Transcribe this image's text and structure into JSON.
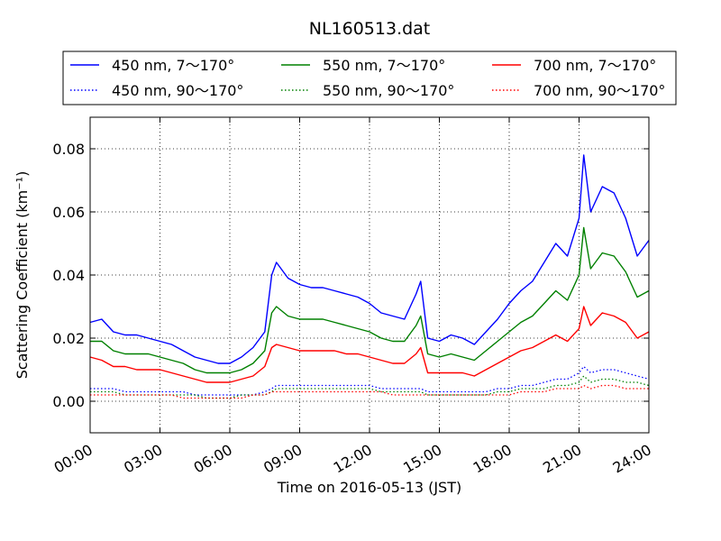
{
  "chart_data": {
    "type": "line",
    "title": "NL160513.dat",
    "xlabel": "Time on 2016-05-13 (JST)",
    "ylabel": "Scattering Coefficient (km⁻¹)",
    "x_ticks": [
      "00:00",
      "03:00",
      "06:00",
      "09:00",
      "12:00",
      "15:00",
      "18:00",
      "21:00",
      "24:00"
    ],
    "y_ticks": [
      "0.00",
      "0.02",
      "0.04",
      "0.06",
      "0.08"
    ],
    "xlim_hours": [
      0,
      24
    ],
    "ylim": [
      -0.01,
      0.09
    ],
    "grid": true,
    "legend_position": "top",
    "x_hours": [
      0,
      0.5,
      1,
      1.5,
      2,
      2.5,
      3,
      3.5,
      4,
      4.5,
      5,
      5.5,
      6,
      6.5,
      7,
      7.5,
      7.8,
      8,
      8.5,
      9,
      9.5,
      10,
      10.5,
      11,
      11.5,
      12,
      12.5,
      13,
      13.5,
      14,
      14.2,
      14.5,
      15,
      15.5,
      16,
      16.5,
      17,
      17.5,
      18,
      18.5,
      19,
      19.5,
      20,
      20.5,
      21,
      21.2,
      21.5,
      22,
      22.5,
      23,
      23.5,
      24
    ],
    "series": [
      {
        "name": "450 nm, 7～170°",
        "color": "#0000ff",
        "dash": "solid",
        "values": [
          0.025,
          0.026,
          0.022,
          0.021,
          0.021,
          0.02,
          0.019,
          0.018,
          0.016,
          0.014,
          0.013,
          0.012,
          0.012,
          0.014,
          0.017,
          0.022,
          0.04,
          0.044,
          0.039,
          0.037,
          0.036,
          0.036,
          0.035,
          0.034,
          0.033,
          0.031,
          0.028,
          0.027,
          0.026,
          0.034,
          0.038,
          0.02,
          0.019,
          0.021,
          0.02,
          0.018,
          0.022,
          0.026,
          0.031,
          0.035,
          0.038,
          0.044,
          0.05,
          0.046,
          0.058,
          0.078,
          0.06,
          0.068,
          0.066,
          0.058,
          0.046,
          0.051
        ]
      },
      {
        "name": "450 nm, 90～170°",
        "color": "#0000ff",
        "dash": "dotted",
        "values": [
          0.004,
          0.004,
          0.004,
          0.003,
          0.003,
          0.003,
          0.003,
          0.003,
          0.003,
          0.002,
          0.002,
          0.002,
          0.002,
          0.002,
          0.002,
          0.003,
          0.004,
          0.005,
          0.005,
          0.005,
          0.005,
          0.005,
          0.005,
          0.005,
          0.005,
          0.005,
          0.004,
          0.004,
          0.004,
          0.004,
          0.004,
          0.003,
          0.003,
          0.003,
          0.003,
          0.003,
          0.003,
          0.004,
          0.004,
          0.005,
          0.005,
          0.006,
          0.007,
          0.007,
          0.009,
          0.011,
          0.009,
          0.01,
          0.01,
          0.009,
          0.008,
          0.007
        ]
      },
      {
        "name": "550 nm, 7～170°",
        "color": "#008000",
        "dash": "solid",
        "values": [
          0.019,
          0.019,
          0.016,
          0.015,
          0.015,
          0.015,
          0.014,
          0.013,
          0.012,
          0.01,
          0.009,
          0.009,
          0.009,
          0.01,
          0.012,
          0.016,
          0.028,
          0.03,
          0.027,
          0.026,
          0.026,
          0.026,
          0.025,
          0.024,
          0.023,
          0.022,
          0.02,
          0.019,
          0.019,
          0.024,
          0.027,
          0.015,
          0.014,
          0.015,
          0.014,
          0.013,
          0.016,
          0.019,
          0.022,
          0.025,
          0.027,
          0.031,
          0.035,
          0.032,
          0.04,
          0.055,
          0.042,
          0.047,
          0.046,
          0.041,
          0.033,
          0.035
        ]
      },
      {
        "name": "550 nm, 90～170°",
        "color": "#008000",
        "dash": "dotted",
        "values": [
          0.003,
          0.003,
          0.003,
          0.002,
          0.002,
          0.002,
          0.002,
          0.002,
          0.002,
          0.002,
          0.001,
          0.001,
          0.001,
          0.002,
          0.002,
          0.002,
          0.003,
          0.004,
          0.004,
          0.004,
          0.004,
          0.004,
          0.004,
          0.004,
          0.004,
          0.004,
          0.003,
          0.003,
          0.003,
          0.003,
          0.003,
          0.002,
          0.002,
          0.002,
          0.002,
          0.002,
          0.002,
          0.003,
          0.003,
          0.004,
          0.004,
          0.004,
          0.005,
          0.005,
          0.006,
          0.008,
          0.006,
          0.007,
          0.007,
          0.006,
          0.006,
          0.005
        ]
      },
      {
        "name": "700 nm, 7～170°",
        "color": "#ff0000",
        "dash": "solid",
        "values": [
          0.014,
          0.013,
          0.011,
          0.011,
          0.01,
          0.01,
          0.01,
          0.009,
          0.008,
          0.007,
          0.006,
          0.006,
          0.006,
          0.007,
          0.008,
          0.011,
          0.017,
          0.018,
          0.017,
          0.016,
          0.016,
          0.016,
          0.016,
          0.015,
          0.015,
          0.014,
          0.013,
          0.012,
          0.012,
          0.015,
          0.017,
          0.009,
          0.009,
          0.009,
          0.009,
          0.008,
          0.01,
          0.012,
          0.014,
          0.016,
          0.017,
          0.019,
          0.021,
          0.019,
          0.023,
          0.03,
          0.024,
          0.028,
          0.027,
          0.025,
          0.02,
          0.022
        ]
      },
      {
        "name": "700 nm, 90～170°",
        "color": "#ff0000",
        "dash": "dotted",
        "values": [
          0.002,
          0.002,
          0.002,
          0.002,
          0.002,
          0.002,
          0.002,
          0.002,
          0.001,
          0.001,
          0.001,
          0.001,
          0.001,
          0.001,
          0.002,
          0.002,
          0.003,
          0.003,
          0.003,
          0.003,
          0.003,
          0.003,
          0.003,
          0.003,
          0.003,
          0.003,
          0.003,
          0.002,
          0.002,
          0.002,
          0.002,
          0.002,
          0.002,
          0.002,
          0.002,
          0.002,
          0.002,
          0.002,
          0.002,
          0.003,
          0.003,
          0.003,
          0.004,
          0.004,
          0.004,
          0.005,
          0.004,
          0.005,
          0.005,
          0.004,
          0.004,
          0.004
        ]
      }
    ]
  }
}
